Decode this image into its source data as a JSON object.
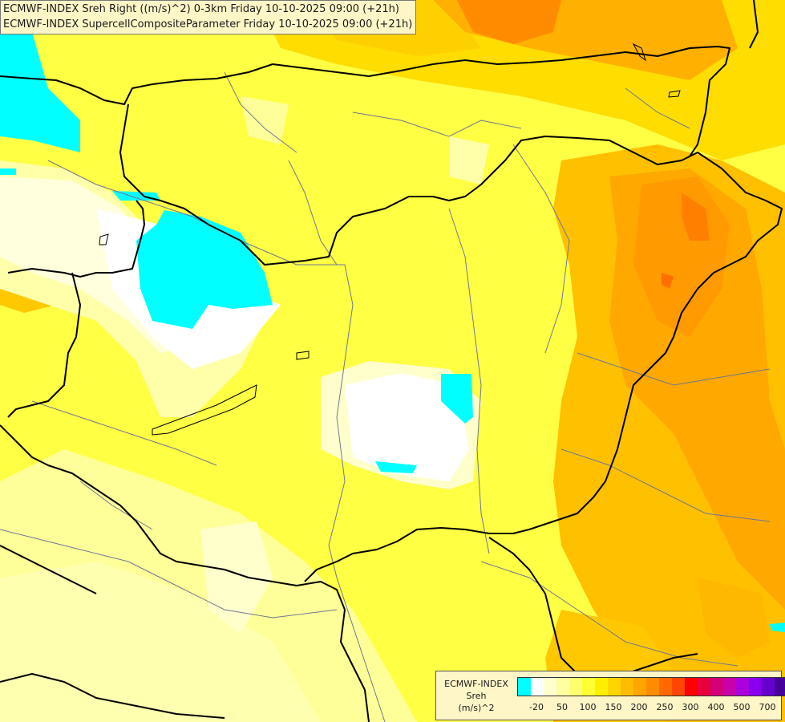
{
  "header": {
    "line1": "ECMWF-INDEX Sreh Right ((m/s)^2) 0-3km Friday 10-10-2025 09:00 (+21h)",
    "line2": "ECMWF-INDEX SupercellCompositeParameter Friday 10-10-2025 09:00 (+21h)"
  },
  "legend": {
    "line1": "ECMWF-INDEX",
    "line2": "Sreh",
    "line3": "(m/s)^2",
    "colors": [
      "#00ffff",
      "#ffffff",
      "#ffffd0",
      "#ffffa0",
      "#ffff70",
      "#ffff33",
      "#ffee00",
      "#ffd500",
      "#ffbb00",
      "#ffa500",
      "#ff8c00",
      "#ff6a00",
      "#ff4500",
      "#ff0000",
      "#e8003c",
      "#d40078",
      "#c800aa",
      "#aa00dd",
      "#8800ee",
      "#6600cc",
      "#440099",
      "#000088"
    ],
    "ticks": [
      "-20",
      "50",
      "100",
      "150",
      "200",
      "250",
      "300",
      "400",
      "500",
      "700"
    ]
  }
}
